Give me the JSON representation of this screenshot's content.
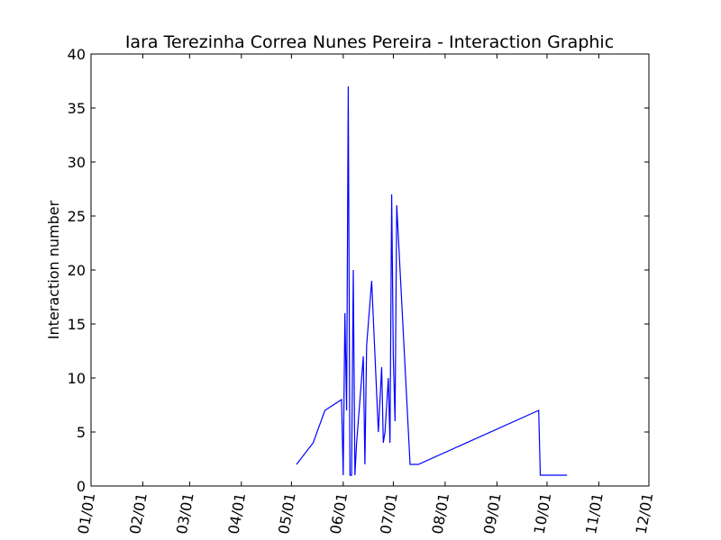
{
  "chart_data": {
    "type": "line",
    "title": "Iara Terezinha Correa Nunes Pereira - Interaction Graphic",
    "xlabel": "",
    "ylabel": "Interaction number",
    "xlim": [
      "01/01",
      "12/01"
    ],
    "ylim": [
      0,
      40
    ],
    "x_ticks": [
      "01/01",
      "02/01",
      "03/01",
      "04/01",
      "05/01",
      "06/01",
      "07/01",
      "08/01",
      "09/01",
      "10/01",
      "11/01",
      "12/01"
    ],
    "y_ticks": [
      "0",
      "5",
      "10",
      "15",
      "20",
      "25",
      "30",
      "35",
      "40"
    ],
    "grid": false,
    "line_color": "#0000ff",
    "series": [
      {
        "x": [
          "05/04",
          "05/14",
          "05/21",
          "05/31",
          "06/01",
          "06/02",
          "06/03",
          "06/04",
          "06/05",
          "06/06",
          "06/07",
          "06/08",
          "06/09",
          "06/13",
          "06/14",
          "06/15",
          "06/18",
          "06/22",
          "06/24",
          "06/25",
          "06/26",
          "06/28",
          "06/29",
          "06/30",
          "07/01",
          "07/02",
          "07/03",
          "07/11",
          "07/12",
          "07/14",
          "07/16",
          "09/26",
          "09/27",
          "10/13"
        ],
        "y": [
          2,
          4,
          7,
          8,
          1,
          16,
          7,
          37,
          1,
          1,
          20,
          1,
          4,
          12,
          2,
          13,
          19,
          5,
          11,
          4,
          5,
          10,
          4,
          27,
          12,
          6,
          26,
          2,
          2,
          2,
          2,
          7,
          1,
          1
        ]
      }
    ]
  }
}
